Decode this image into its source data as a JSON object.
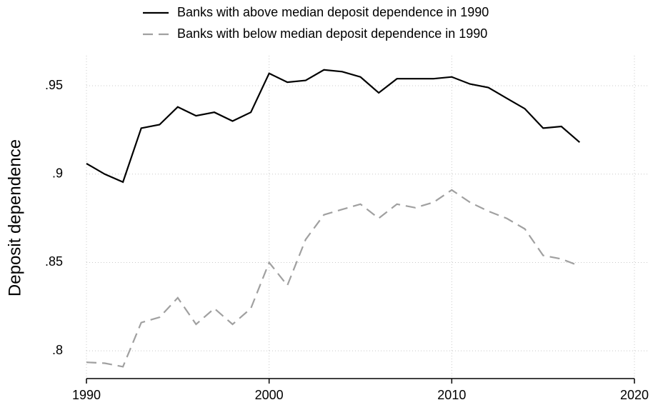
{
  "chart_data": {
    "type": "line",
    "y_label": "Deposit dependence",
    "x": [
      1990,
      1991,
      1992,
      1993,
      1994,
      1995,
      1996,
      1997,
      1998,
      1999,
      2000,
      2001,
      2002,
      2003,
      2004,
      2005,
      2006,
      2007,
      2008,
      2009,
      2010,
      2011,
      2012,
      2013,
      2014,
      2015,
      2016,
      2017
    ],
    "series": [
      {
        "name": "Banks with above median deposit dependence in 1990",
        "color": "#000000",
        "dash": "solid",
        "values": [
          0.906,
          0.9,
          0.8955,
          0.926,
          0.928,
          0.938,
          0.933,
          0.935,
          0.93,
          0.935,
          0.957,
          0.952,
          0.953,
          0.959,
          0.958,
          0.955,
          0.946,
          0.954,
          0.954,
          0.954,
          0.955,
          0.951,
          0.949,
          0.943,
          0.937,
          0.926,
          0.927,
          0.918
        ]
      },
      {
        "name": "Banks with below median deposit dependence in 1990",
        "color": "#a0a0a0",
        "dash": "dashed",
        "values": [
          0.7935,
          0.793,
          0.791,
          0.816,
          0.819,
          0.83,
          0.815,
          0.824,
          0.815,
          0.824,
          0.85,
          0.837,
          0.863,
          0.877,
          0.88,
          0.883,
          0.875,
          0.883,
          0.881,
          0.884,
          0.891,
          0.884,
          0.879,
          0.875,
          0.869,
          0.854,
          0.852,
          0.848
        ]
      }
    ],
    "xlim": [
      1990,
      2020
    ],
    "xticks": [
      1990,
      2000,
      2010,
      2020
    ],
    "ylim": [
      0.7843,
      0.967
    ],
    "yticks": [
      {
        "value": 0.8,
        "label": ".8"
      },
      {
        "value": 0.85,
        "label": ".85"
      },
      {
        "value": 0.9,
        "label": ".9"
      },
      {
        "value": 0.95,
        "label": ".95"
      }
    ],
    "grid": true,
    "legend_position": "top"
  }
}
